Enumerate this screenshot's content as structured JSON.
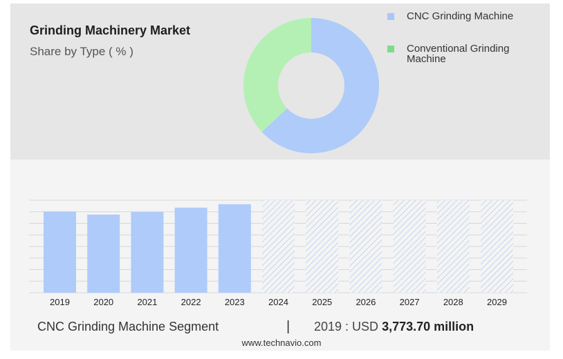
{
  "header": {
    "title": "Grinding Machinery Market",
    "subtitle": "Share by Type ( % )"
  },
  "footer": {
    "segment_label": "CNC Grinding Machine Segment",
    "separator": "|",
    "year_prefix": "2019 : USD ",
    "value_text": "3,773.70 million",
    "source": "www.technavio.com"
  },
  "chart_data": [
    {
      "type": "pie",
      "variant": "donut",
      "title": "",
      "labels": [
        "CNC Grinding Machine",
        "Conventional Grinding Machine"
      ],
      "values": [
        63,
        37
      ],
      "colors": [
        "#aecbfa",
        "#b4f0b4"
      ],
      "legend_colors": [
        "#a8c7fa",
        "#7ddc8c"
      ],
      "legend_position": "right"
    },
    {
      "type": "bar",
      "title": "",
      "xlabel": "",
      "ylabel": "",
      "categories": [
        "2019",
        "2020",
        "2021",
        "2022",
        "2023",
        "2024",
        "2025",
        "2026",
        "2027",
        "2028",
        "2029"
      ],
      "series": [
        {
          "values": [
            3773.7,
            3630,
            3750,
            3955,
            4115,
            4300,
            4300,
            4300,
            4300,
            4300,
            4300
          ]
        }
      ],
      "forecast_from": "2024",
      "ylim": [
        0,
        4300
      ],
      "grid": true,
      "colors": {
        "actual": "#aecbfa",
        "forecast_hatch": "#b9cdee"
      }
    }
  ]
}
